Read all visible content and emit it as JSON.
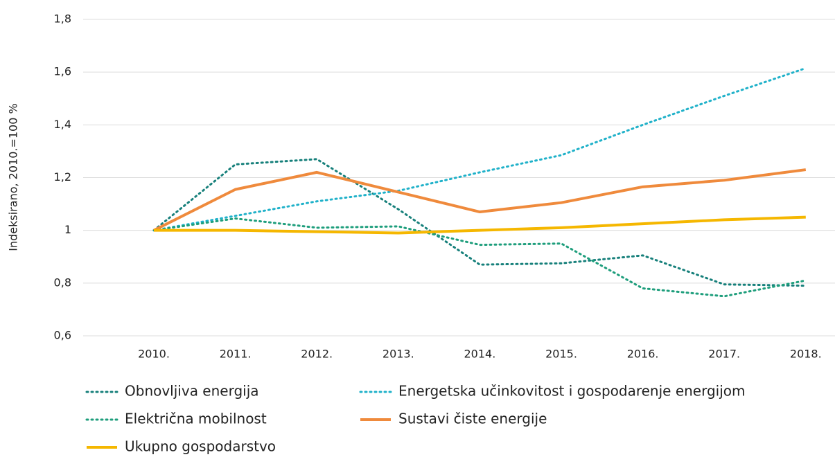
{
  "chart_data": {
    "type": "line",
    "ylabel": "Indeksirano, 2010.=100 %",
    "categories": [
      "2010.",
      "2011.",
      "2012.",
      "2013.",
      "2014.",
      "2015.",
      "2016.",
      "2017.",
      "2018."
    ],
    "series": [
      {
        "name": "Obnovljiva energija",
        "color": "#17807b",
        "line_style": "dotted",
        "values": [
          1.0,
          1.25,
          1.27,
          1.08,
          0.87,
          0.875,
          0.905,
          0.795,
          0.79
        ]
      },
      {
        "name": "Energetska učinkovitost i gospodarenje energijom",
        "color": "#1fb1c9",
        "line_style": "dotted",
        "values": [
          1.0,
          1.055,
          1.11,
          1.15,
          1.22,
          1.285,
          1.4,
          1.51,
          1.615
        ]
      },
      {
        "name": "Električna mobilnost",
        "color": "#1e9e7c",
        "line_style": "dotted",
        "values": [
          1.0,
          1.045,
          1.01,
          1.015,
          0.945,
          0.95,
          0.78,
          0.75,
          0.81
        ]
      },
      {
        "name": "Sustavi čiste energije",
        "color": "#ef8a3c",
        "line_style": "solid",
        "values": [
          1.0,
          1.155,
          1.22,
          1.145,
          1.07,
          1.105,
          1.165,
          1.19,
          1.23
        ]
      },
      {
        "name": "Ukupno gospodarstvo",
        "color": "#f5b700",
        "line_style": "solid",
        "values": [
          1.0,
          1.0,
          0.995,
          0.99,
          1.0,
          1.01,
          1.025,
          1.04,
          1.05
        ]
      }
    ],
    "ylim": [
      0.6,
      1.8
    ],
    "yticks": [
      {
        "value": 0.6,
        "label": "0,6"
      },
      {
        "value": 0.8,
        "label": "0,8"
      },
      1,
      {
        "value": 1.2,
        "label": "1,2"
      },
      {
        "value": 1.4,
        "label": "1,4"
      },
      {
        "value": 1.6,
        "label": "1,6"
      },
      {
        "value": 1.8,
        "label": "1,8"
      }
    ],
    "grid": true
  }
}
